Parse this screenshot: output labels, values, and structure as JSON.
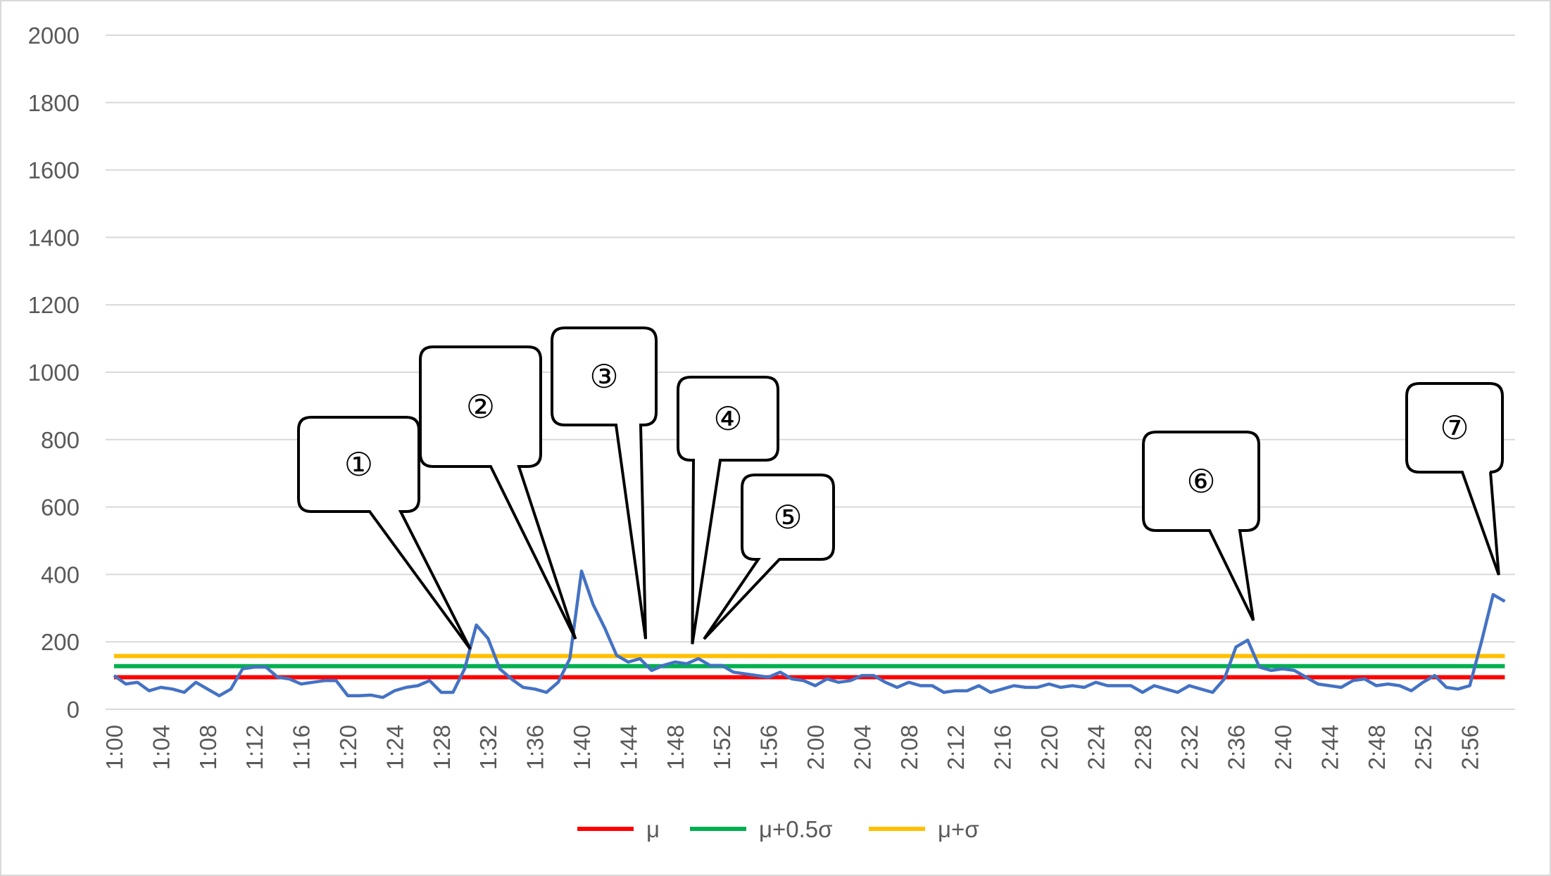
{
  "chart_data": {
    "type": "line",
    "title": "",
    "xlabel": "",
    "ylabel": "",
    "ylim": [
      0,
      2000
    ],
    "yticks": [
      0,
      200,
      400,
      600,
      800,
      1000,
      1200,
      1400,
      1600,
      1800,
      2000
    ],
    "x_tick_labels": [
      "1:00",
      "1:04",
      "1:08",
      "1:12",
      "1:16",
      "1:20",
      "1:24",
      "1:28",
      "1:32",
      "1:36",
      "1:40",
      "1:44",
      "1:48",
      "1:52",
      "1:56",
      "2:00",
      "2:04",
      "2:08",
      "2:12",
      "2:16",
      "2:20",
      "2:24",
      "2:28",
      "2:32",
      "2:36",
      "2:40",
      "2:44",
      "2:48",
      "2:52",
      "2:56"
    ],
    "grid": true,
    "legend_position": "bottom-center",
    "series": [
      {
        "color": "#4472c4",
        "x_start": "1:00",
        "step_minutes": 1,
        "values": [
          100,
          75,
          80,
          55,
          65,
          60,
          50,
          80,
          60,
          40,
          60,
          120,
          125,
          125,
          95,
          90,
          75,
          80,
          85,
          85,
          40,
          40,
          42,
          35,
          55,
          65,
          70,
          85,
          50,
          50,
          120,
          250,
          210,
          120,
          90,
          65,
          60,
          50,
          80,
          150,
          410,
          310,
          240,
          160,
          140,
          150,
          115,
          130,
          140,
          135,
          150,
          130,
          130,
          110,
          105,
          100,
          95,
          110,
          90,
          85,
          70,
          90,
          80,
          85,
          100,
          100,
          80,
          65,
          80,
          70,
          70,
          50,
          55,
          55,
          70,
          50,
          60,
          70,
          65,
          65,
          75,
          65,
          70,
          65,
          80,
          70,
          70,
          70,
          50,
          70,
          60,
          50,
          70,
          60,
          50,
          90,
          185,
          205,
          125,
          115,
          120,
          115,
          95,
          75,
          70,
          65,
          85,
          90,
          70,
          75,
          70,
          55,
          80,
          100,
          65,
          60,
          70,
          200,
          340,
          320
        ]
      },
      {
        "name": "μ",
        "color": "#ff0000",
        "values": [
          95
        ]
      },
      {
        "name": "μ+0.5σ",
        "color": "#00b050",
        "values": [
          128
        ]
      },
      {
        "name": "μ+σ",
        "color": "#ffc000",
        "values": [
          158
        ]
      }
    ],
    "annotations": [
      {
        "label": "①",
        "point_time": "1:30"
      },
      {
        "label": "②",
        "point_time": "1:39"
      },
      {
        "label": "③",
        "point_time": "1:45"
      },
      {
        "label": "④",
        "point_time": "1:49"
      },
      {
        "label": "⑤",
        "point_time": "1:50"
      },
      {
        "label": "⑥",
        "point_time": "2:37"
      },
      {
        "label": "⑦",
        "point_time": "2:58"
      }
    ]
  }
}
